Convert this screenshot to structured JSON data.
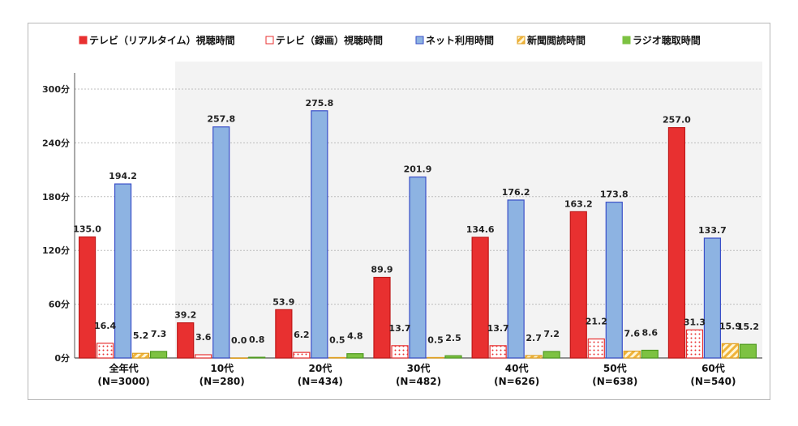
{
  "chart_data": {
    "type": "bar",
    "categories": [
      "全年代",
      "10代",
      "20代",
      "30代",
      "40代",
      "50代",
      "60代"
    ],
    "category_sublabels": [
      "(N=3000)",
      "(N=280)",
      "(N=434)",
      "(N=482)",
      "(N=626)",
      "(N=638)",
      "(N=540)"
    ],
    "series": [
      {
        "name": "テレビ（リアルタイム）視聴時間",
        "values": [
          135.0,
          39.2,
          53.9,
          89.9,
          134.6,
          163.2,
          257.0
        ],
        "labels": [
          "135.0",
          "39.2",
          "53.9",
          "89.9",
          "134.6",
          "163.2",
          "257.0"
        ],
        "color": "#e83030",
        "pattern": "solid"
      },
      {
        "name": "テレビ（録画）視聴時間",
        "values": [
          16.4,
          3.6,
          6.2,
          13.7,
          13.7,
          21.2,
          31.3
        ],
        "labels": [
          "16.4",
          "3.6",
          "6.2",
          "13.7",
          "13.7",
          "21.2",
          "31.3"
        ],
        "color": "#e83030",
        "pattern": "dots"
      },
      {
        "name": "ネット利用時間",
        "values": [
          194.2,
          257.8,
          275.8,
          201.9,
          176.2,
          173.8,
          133.7
        ],
        "labels": [
          "194.2",
          "257.8",
          "275.8",
          "201.9",
          "176.2",
          "173.8",
          "133.7"
        ],
        "color": "#8db3e2",
        "pattern": "solid"
      },
      {
        "name": "新聞閲読時間",
        "values": [
          5.2,
          0.0,
          0.5,
          0.5,
          2.7,
          7.6,
          15.9
        ],
        "labels": [
          "5.2",
          "0.0",
          "0.5",
          "0.5",
          "2.7",
          "7.6",
          "15.9"
        ],
        "color": "#f0b43c",
        "pattern": "stripes"
      },
      {
        "name": "ラジオ聴取時間",
        "values": [
          7.3,
          0.8,
          4.8,
          2.5,
          7.2,
          8.6,
          15.2
        ],
        "labels": [
          "7.3",
          "0.8",
          "4.8",
          "2.5",
          "7.2",
          "8.6",
          "15.2"
        ],
        "color": "#7dc242",
        "pattern": "solid"
      }
    ],
    "ylim": [
      0,
      300
    ],
    "yticks": [
      0,
      60,
      120,
      180,
      240,
      300
    ],
    "ytick_labels": [
      "0分",
      "60分",
      "120分",
      "180分",
      "240分",
      "300分"
    ],
    "grid": true,
    "legend_position": "top"
  }
}
